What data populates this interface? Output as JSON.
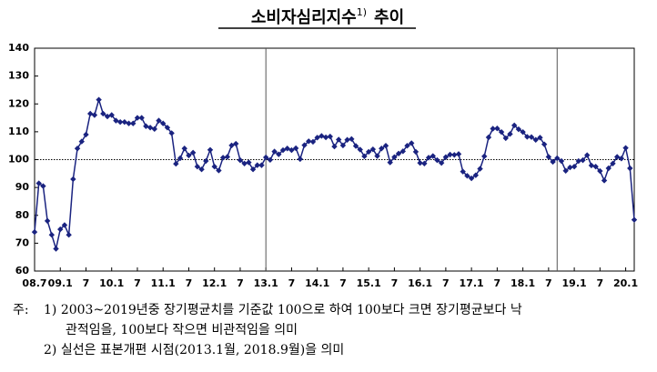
{
  "chart_data": {
    "type": "line",
    "title": "소비자심리지수",
    "title_sup": "1)",
    "title_suffix": "추이",
    "categories": [
      "08.7",
      null,
      null,
      null,
      null,
      null,
      "09.1",
      null,
      null,
      null,
      null,
      null,
      "7",
      null,
      null,
      null,
      null,
      null,
      "10.1",
      null,
      null,
      null,
      null,
      null,
      "7",
      null,
      null,
      null,
      null,
      null,
      "11.1",
      null,
      null,
      null,
      null,
      null,
      "7",
      null,
      null,
      null,
      null,
      null,
      "12.1",
      null,
      null,
      null,
      null,
      null,
      "7",
      null,
      null,
      null,
      null,
      null,
      "13.1",
      null,
      null,
      null,
      null,
      null,
      "7",
      null,
      null,
      null,
      null,
      null,
      "14.1",
      null,
      null,
      null,
      null,
      null,
      "7",
      null,
      null,
      null,
      null,
      null,
      "15.1",
      null,
      null,
      null,
      null,
      null,
      "7",
      null,
      null,
      null,
      null,
      null,
      "16.1",
      null,
      null,
      null,
      null,
      null,
      "7",
      null,
      null,
      null,
      null,
      null,
      "17.1",
      null,
      null,
      null,
      null,
      null,
      "7",
      null,
      null,
      null,
      null,
      null,
      "18.1",
      null,
      null,
      null,
      null,
      null,
      "7",
      null,
      null,
      null,
      null,
      null,
      "19.1",
      null,
      null,
      null,
      null,
      null,
      "7",
      null,
      null,
      null,
      null,
      null,
      "20.1",
      null,
      null
    ],
    "series": [
      {
        "color": "#1a2380",
        "values": [
          74,
          91.5,
          90.5,
          78,
          73,
          68,
          75,
          76.5,
          73,
          93,
          104,
          106.5,
          109,
          116.5,
          116,
          121.5,
          116.5,
          115.5,
          116,
          114,
          113.5,
          113.5,
          113,
          113,
          115,
          115,
          112,
          111.5,
          111,
          114,
          113,
          111.5,
          109.5,
          98.5,
          100.5,
          104,
          101.5,
          102.5,
          97.5,
          96.5,
          99.5,
          103.5,
          97.5,
          96.1,
          100.7,
          101,
          105.1,
          105.7,
          99.8,
          98.6,
          99,
          96.5,
          98,
          98,
          100.8,
          99.9,
          102.9,
          101.9,
          103.4,
          104,
          103.4,
          104.1,
          100.2,
          105.2,
          106.6,
          106.4,
          107.9,
          108.5,
          108,
          108.3,
          104.7,
          107.2,
          105.1,
          107.1,
          107.4,
          104.9,
          103.6,
          101.2,
          102.8,
          103.7,
          101.3,
          104,
          105,
          99,
          100.9,
          102.2,
          103,
          105,
          105.9,
          102.8,
          98.8,
          98.6,
          100.7,
          101.3,
          99.8,
          98.8,
          100.9,
          101.8,
          101.7,
          102,
          95.7,
          94.2,
          93.3,
          94.4,
          96.7,
          101.2,
          108,
          111.1,
          111.2,
          109.9,
          107.7,
          109.2,
          112.3,
          110.9,
          109.9,
          108.2,
          108.1,
          107.1,
          107.9,
          105.5,
          101,
          99.2,
          100.5,
          99.5,
          96,
          97.2,
          97.5,
          99.5,
          99.8,
          101.6,
          97.9,
          97.5,
          95.9,
          92.5,
          96.9,
          98.6,
          101,
          100.4,
          104.2,
          96.9,
          78.4
        ]
      }
    ],
    "ylim": [
      60,
      140
    ],
    "yticks": [
      60,
      70,
      80,
      90,
      100,
      110,
      120,
      130,
      140
    ],
    "hline": 100,
    "vlines": [
      54,
      122
    ]
  },
  "notes": {
    "label": "주:",
    "lines": [
      "1) 2003~2019년중 장기평균치를 기준값 100으로 하여 100보다 크면 장기평균보다 낙",
      "관적임을, 100보다 작으면 비관적임을 의미",
      "2) 실선은 표본개편 시점(2013.1월, 2018.9월)을 의미"
    ]
  }
}
